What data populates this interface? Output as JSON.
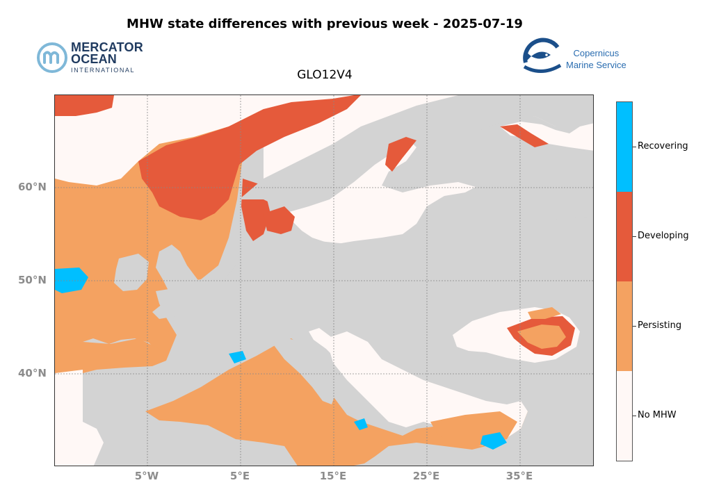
{
  "title": "MHW state differences with previous week - 2025-07-19",
  "subtitle": "GLO12V4",
  "logos": {
    "mercator": {
      "line1": "MERCATOR",
      "line2": "OCEAN",
      "line3": "INTERNATIONAL"
    },
    "copernicus": {
      "line1": "Copernicus",
      "line2": "Marine Service"
    }
  },
  "axes": {
    "lat_labels": [
      "60°N",
      "50°N",
      "40°N"
    ],
    "lon_labels": [
      "5°W",
      "5°E",
      "15°E",
      "25°E",
      "35°E"
    ]
  },
  "legend": {
    "categories": [
      {
        "label": "Recovering",
        "color": "#00bfff"
      },
      {
        "label": "Developing",
        "color": "#e55a3b"
      },
      {
        "label": "Persisting",
        "color": "#f4a261"
      },
      {
        "label": "No MHW",
        "color": "#fff8f6"
      }
    ]
  },
  "colors": {
    "land": "#d3d3d3",
    "grid": "#888888"
  }
}
